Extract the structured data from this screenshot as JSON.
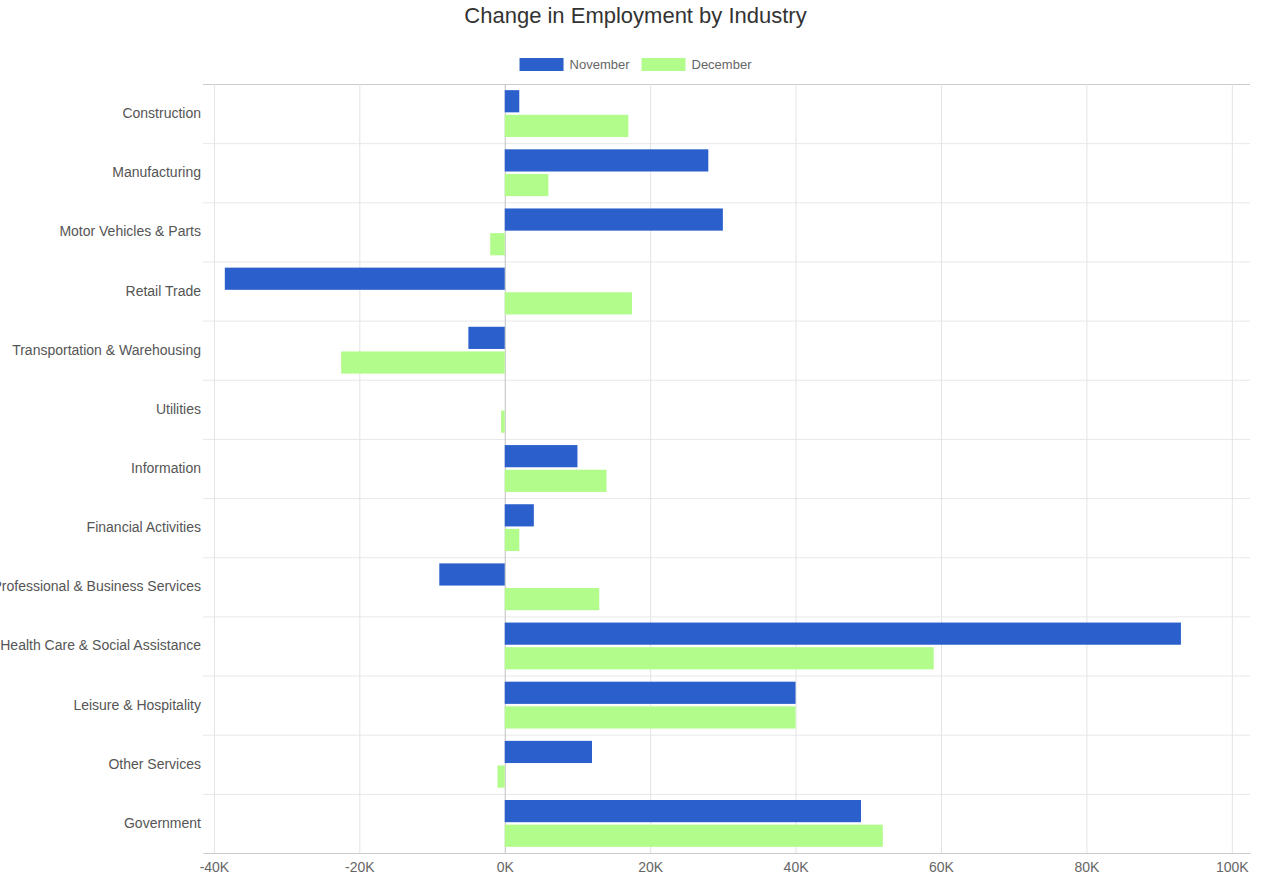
{
  "chart_data": {
    "type": "bar",
    "orientation": "horizontal",
    "title": "Change in Employment by Industry",
    "categories": [
      "Construction",
      "Manufacturing",
      "Motor Vehicles & Parts",
      "Retail Trade",
      "Transportation & Warehousing",
      "Utilities",
      "Information",
      "Financial Activities",
      "Professional & Business Services",
      "Health Care & Social Assistance",
      "Leisure & Hospitality",
      "Other Services",
      "Government"
    ],
    "series": [
      {
        "name": "November",
        "color": "#2a5fcc",
        "values": [
          2000,
          28000,
          30000,
          -38500,
          -5000,
          0,
          10000,
          4000,
          -9000,
          93000,
          40000,
          12000,
          49000
        ]
      },
      {
        "name": "December",
        "color": "#b2fc8c",
        "values": [
          17000,
          6000,
          -2000,
          17500,
          -22500,
          -500,
          14000,
          2000,
          13000,
          59000,
          40000,
          -1000,
          52000
        ]
      }
    ],
    "xlim": [
      -41500,
      102500
    ],
    "xticks": [
      {
        "value": -40000,
        "label": "-40K"
      },
      {
        "value": -20000,
        "label": "-20K"
      },
      {
        "value": 0,
        "label": "0K"
      },
      {
        "value": 20000,
        "label": "20K"
      },
      {
        "value": 40000,
        "label": "40K"
      },
      {
        "value": 60000,
        "label": "60K"
      },
      {
        "value": 80000,
        "label": "80K"
      },
      {
        "value": 100000,
        "label": "100K"
      }
    ],
    "grid": true,
    "legend": "top"
  }
}
